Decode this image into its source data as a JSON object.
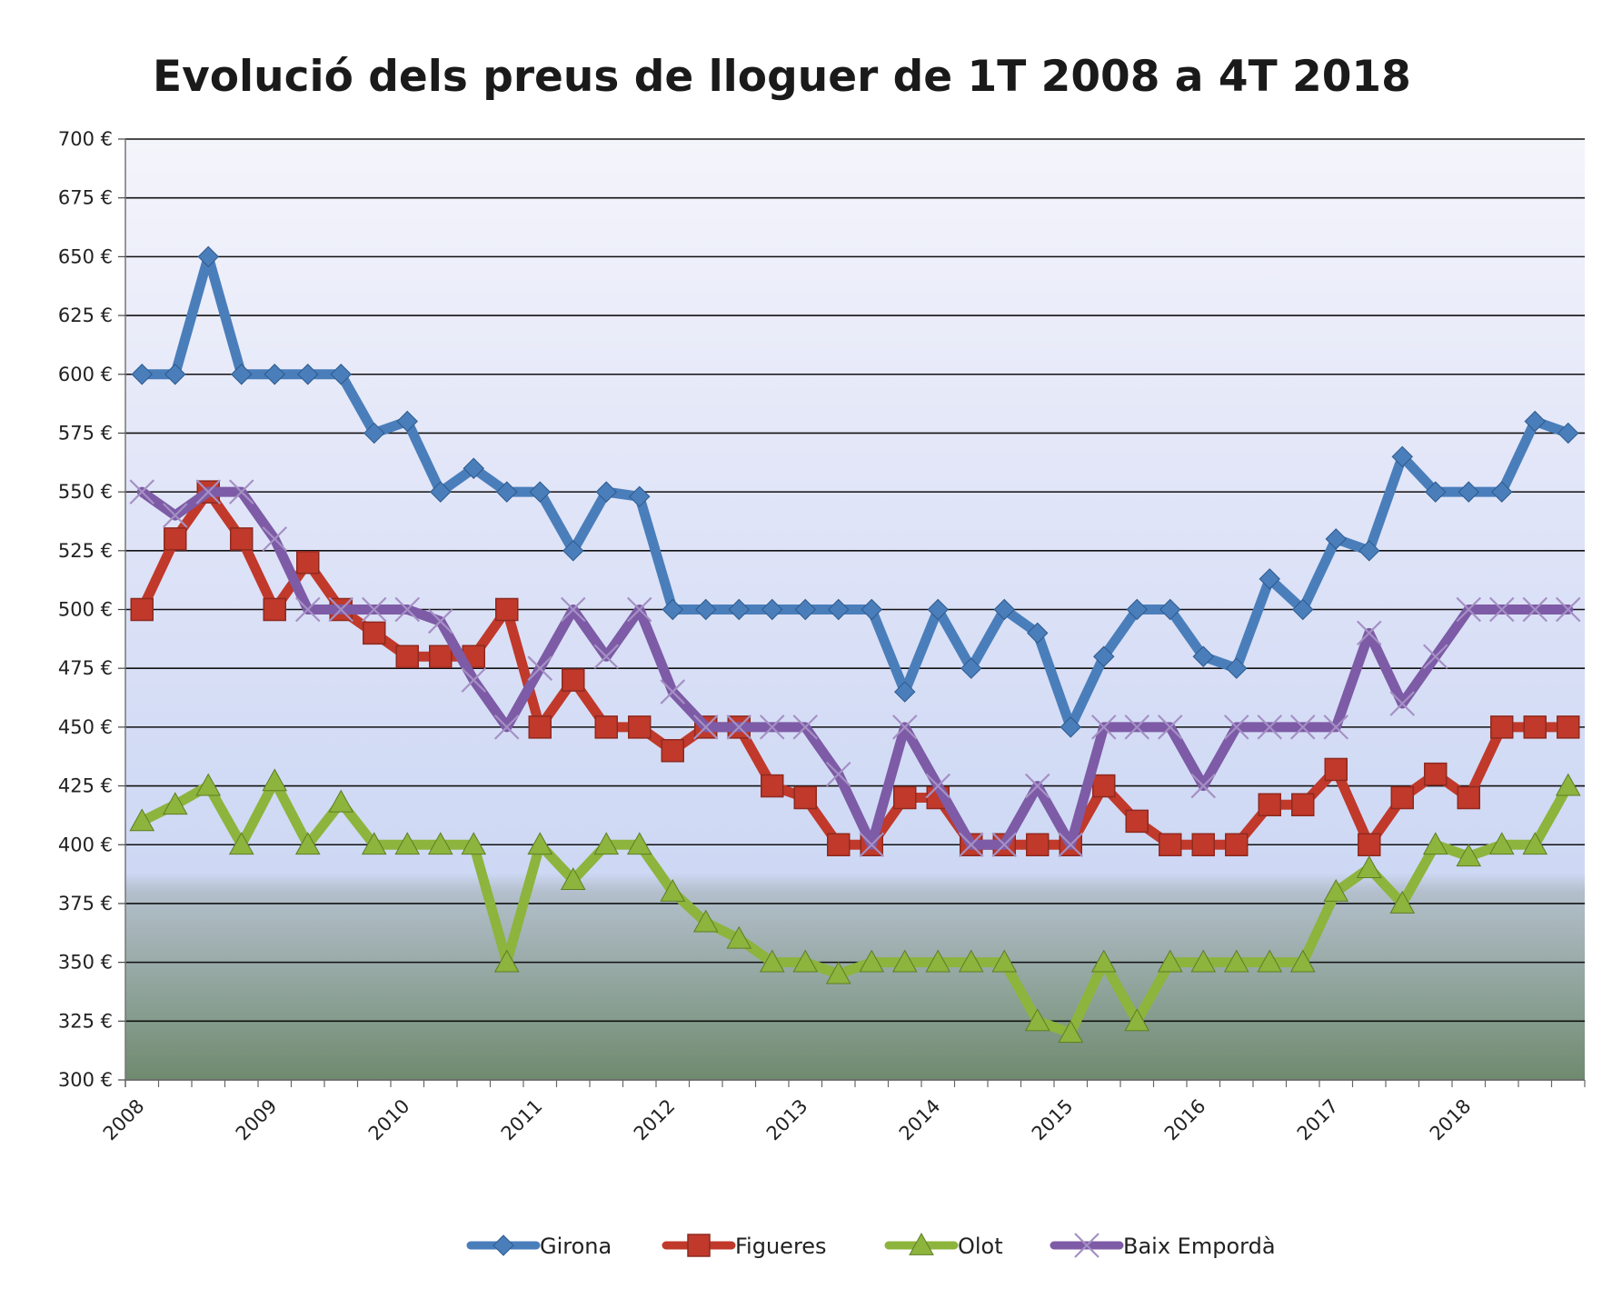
{
  "chart_data": {
    "type": "line",
    "title": "Evolució dels preus de lloguer de 1T 2008 a 4T 2018",
    "xlabel": "",
    "ylabel": "",
    "ylim": [
      300,
      700
    ],
    "y_ticks": [
      "300 €",
      "325 €",
      "350 €",
      "375 €",
      "400 €",
      "425 €",
      "450 €",
      "475 €",
      "500 €",
      "525 €",
      "550 €",
      "575 €",
      "600 €",
      "625 €",
      "650 €",
      "675 €",
      "700 €"
    ],
    "x_tick_labels": [
      "2008",
      "2009",
      "2010",
      "2011",
      "2012",
      "2013",
      "2014",
      "2015",
      "2016",
      "2017",
      "2018"
    ],
    "grid": true,
    "legend_position": "bottom",
    "series": [
      {
        "name": "Girona",
        "color": "#4a7ebb",
        "marker": "diamond",
        "values": [
          600,
          600,
          650,
          600,
          600,
          600,
          600,
          575,
          580,
          550,
          560,
          550,
          550,
          525,
          550,
          548,
          500,
          500,
          500,
          500,
          500,
          500,
          500,
          465,
          500,
          475,
          500,
          490,
          450,
          480,
          500,
          500,
          480,
          475,
          513,
          500,
          530,
          525,
          565,
          550,
          550,
          550,
          580,
          575
        ]
      },
      {
        "name": "Figueres",
        "color": "#c0392b",
        "marker": "square",
        "values": [
          500,
          530,
          550,
          530,
          500,
          520,
          500,
          490,
          480,
          480,
          480,
          500,
          450,
          470,
          450,
          450,
          440,
          450,
          450,
          425,
          420,
          400,
          400,
          420,
          420,
          400,
          400,
          400,
          400,
          425,
          410,
          400,
          400,
          400,
          417,
          417,
          432,
          400,
          420,
          430,
          420,
          450,
          450,
          450
        ]
      },
      {
        "name": "Olot",
        "color": "#8db43d",
        "marker": "triangle",
        "values": [
          410,
          417,
          425,
          400,
          427,
          400,
          418,
          400,
          400,
          400,
          400,
          350,
          400,
          385,
          400,
          400,
          380,
          367,
          360,
          350,
          350,
          345,
          350,
          350,
          350,
          350,
          350,
          325,
          320,
          350,
          325,
          350,
          350,
          350,
          350,
          350,
          380,
          390,
          375,
          400,
          395,
          400,
          400,
          425
        ]
      },
      {
        "name": "Baix Empordà",
        "color": "#7d5ba6",
        "marker": "x",
        "values": [
          550,
          540,
          550,
          550,
          530,
          500,
          500,
          500,
          500,
          495,
          470,
          450,
          475,
          500,
          480,
          500,
          465,
          450,
          450,
          450,
          450,
          430,
          400,
          450,
          425,
          400,
          400,
          425,
          400,
          450,
          450,
          450,
          425,
          450,
          450,
          450,
          450,
          490,
          460,
          480,
          500,
          500,
          500,
          500
        ]
      }
    ]
  }
}
